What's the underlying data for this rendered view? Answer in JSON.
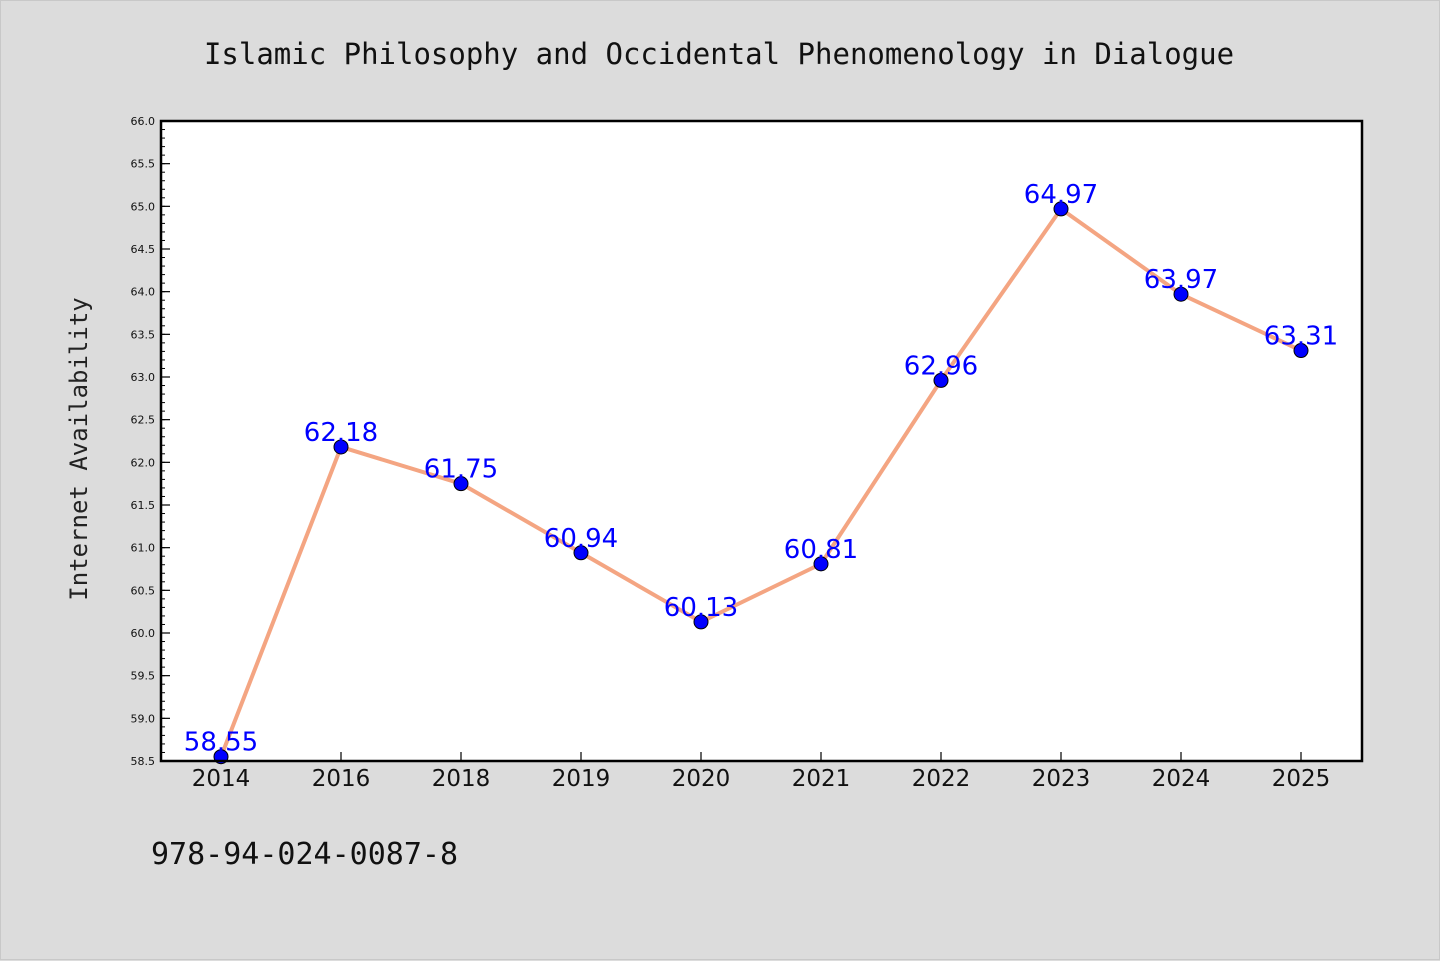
{
  "chart_data": {
    "type": "line",
    "title": "Islamic Philosophy and Occidental Phenomenology in Dialogue",
    "xlabel": "",
    "ylabel": "Internet Availability",
    "categories": [
      "2014",
      "2016",
      "2018",
      "2019",
      "2020",
      "2021",
      "2022",
      "2023",
      "2024",
      "2025"
    ],
    "series": [
      {
        "values": [
          58.55,
          62.18,
          61.75,
          60.94,
          60.13,
          60.81,
          62.96,
          64.97,
          63.97,
          63.31
        ],
        "data_labels": [
          "58.55",
          "62.18",
          "61.75",
          "60.94",
          "60.13",
          "60.81",
          "62.96",
          "64.97",
          "63.97",
          "63.31"
        ]
      }
    ],
    "ylim": [
      58.5,
      66.0
    ],
    "yticks": [
      "58.5",
      "59.0",
      "59.5",
      "60.0",
      "60.5",
      "61.0",
      "61.5",
      "62.0",
      "62.5",
      "63.0",
      "63.5",
      "64.0",
      "64.5",
      "65.0",
      "65.5",
      "66.0"
    ],
    "grid": false,
    "legend": "none",
    "colors": {
      "line": "#f4a582",
      "marker": "#0000ff",
      "data_label": "#0000ff",
      "background": "#dcdcdc",
      "plot_background": "#ffffff"
    }
  },
  "footer": {
    "isbn": "978-94-024-0087-8"
  }
}
